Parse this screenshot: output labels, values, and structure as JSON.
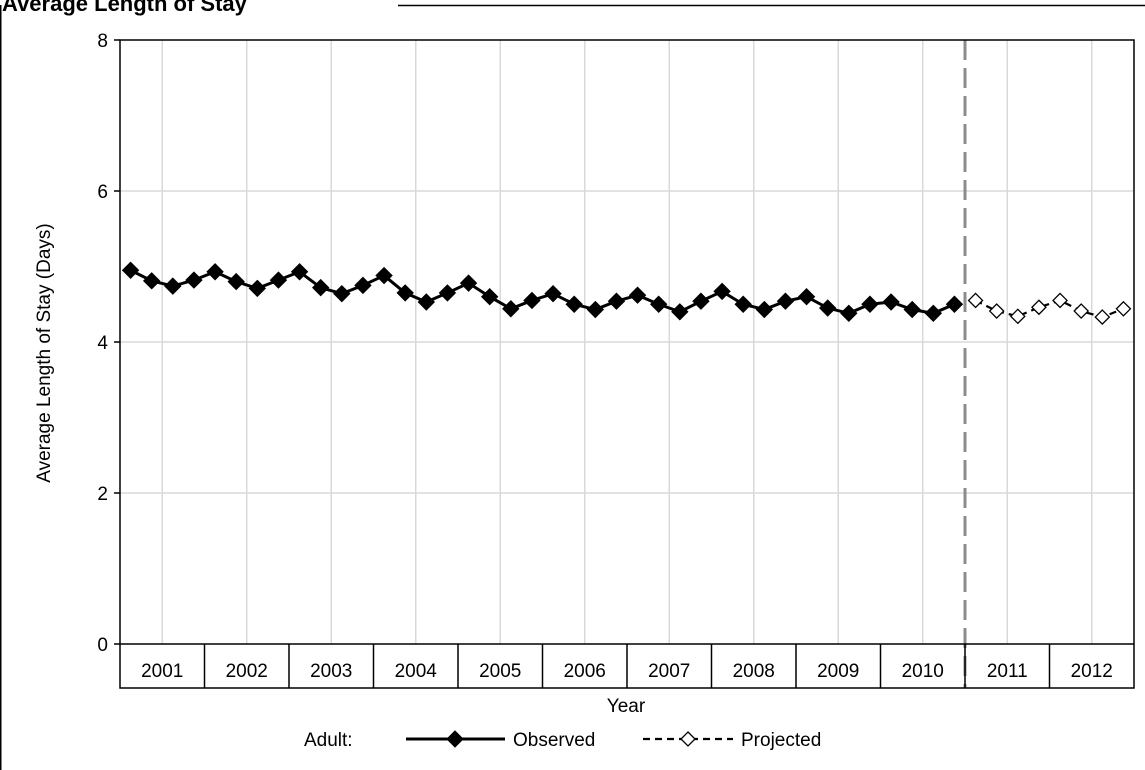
{
  "page": {
    "title": "Average Length of Stay"
  },
  "chart_data": {
    "type": "line",
    "title": "Average Length of Stay",
    "xlabel": "Year",
    "ylabel": "Average Length of Stay (Days)",
    "ylim": [
      0,
      8
    ],
    "yticks": [
      "0",
      "2",
      "4",
      "6",
      "8"
    ],
    "x_unit": "quarter",
    "xlim": [
      "2001-Q1",
      "2012-Q4"
    ],
    "year_labels": [
      "2001",
      "2002",
      "2003",
      "2004",
      "2005",
      "2006",
      "2007",
      "2008",
      "2009",
      "2010",
      "2011",
      "2012"
    ],
    "grid": true,
    "projection_divider": "2010-Q4/2011-Q1",
    "legend": {
      "position": "bottom",
      "group_label": "Adult:",
      "entries": [
        "Observed",
        "Projected"
      ]
    },
    "series": [
      {
        "name": "Observed",
        "style": "solid",
        "marker": "filled-diamond",
        "x": [
          "2001-Q1",
          "2001-Q2",
          "2001-Q3",
          "2001-Q4",
          "2002-Q1",
          "2002-Q2",
          "2002-Q3",
          "2002-Q4",
          "2003-Q1",
          "2003-Q2",
          "2003-Q3",
          "2003-Q4",
          "2004-Q1",
          "2004-Q2",
          "2004-Q3",
          "2004-Q4",
          "2005-Q1",
          "2005-Q2",
          "2005-Q3",
          "2005-Q4",
          "2006-Q1",
          "2006-Q2",
          "2006-Q3",
          "2006-Q4",
          "2007-Q1",
          "2007-Q2",
          "2007-Q3",
          "2007-Q4",
          "2008-Q1",
          "2008-Q2",
          "2008-Q3",
          "2008-Q4",
          "2009-Q1",
          "2009-Q2",
          "2009-Q3",
          "2009-Q4",
          "2010-Q1",
          "2010-Q2",
          "2010-Q3",
          "2010-Q4"
        ],
        "values": [
          4.95,
          4.81,
          4.74,
          4.82,
          4.93,
          4.8,
          4.71,
          4.82,
          4.93,
          4.72,
          4.64,
          4.75,
          4.88,
          4.65,
          4.53,
          4.65,
          4.78,
          4.6,
          4.44,
          4.55,
          4.64,
          4.5,
          4.43,
          4.54,
          4.62,
          4.5,
          4.4,
          4.54,
          4.67,
          4.5,
          4.43,
          4.54,
          4.6,
          4.45,
          4.38,
          4.5,
          4.53,
          4.43,
          4.38,
          4.5
        ]
      },
      {
        "name": "Projected",
        "style": "dashed",
        "marker": "open-diamond",
        "x": [
          "2011-Q1",
          "2011-Q2",
          "2011-Q3",
          "2011-Q4",
          "2012-Q1",
          "2012-Q2",
          "2012-Q3",
          "2012-Q4"
        ],
        "values": [
          4.55,
          4.41,
          4.34,
          4.46,
          4.55,
          4.41,
          4.33,
          4.44
        ]
      }
    ]
  }
}
